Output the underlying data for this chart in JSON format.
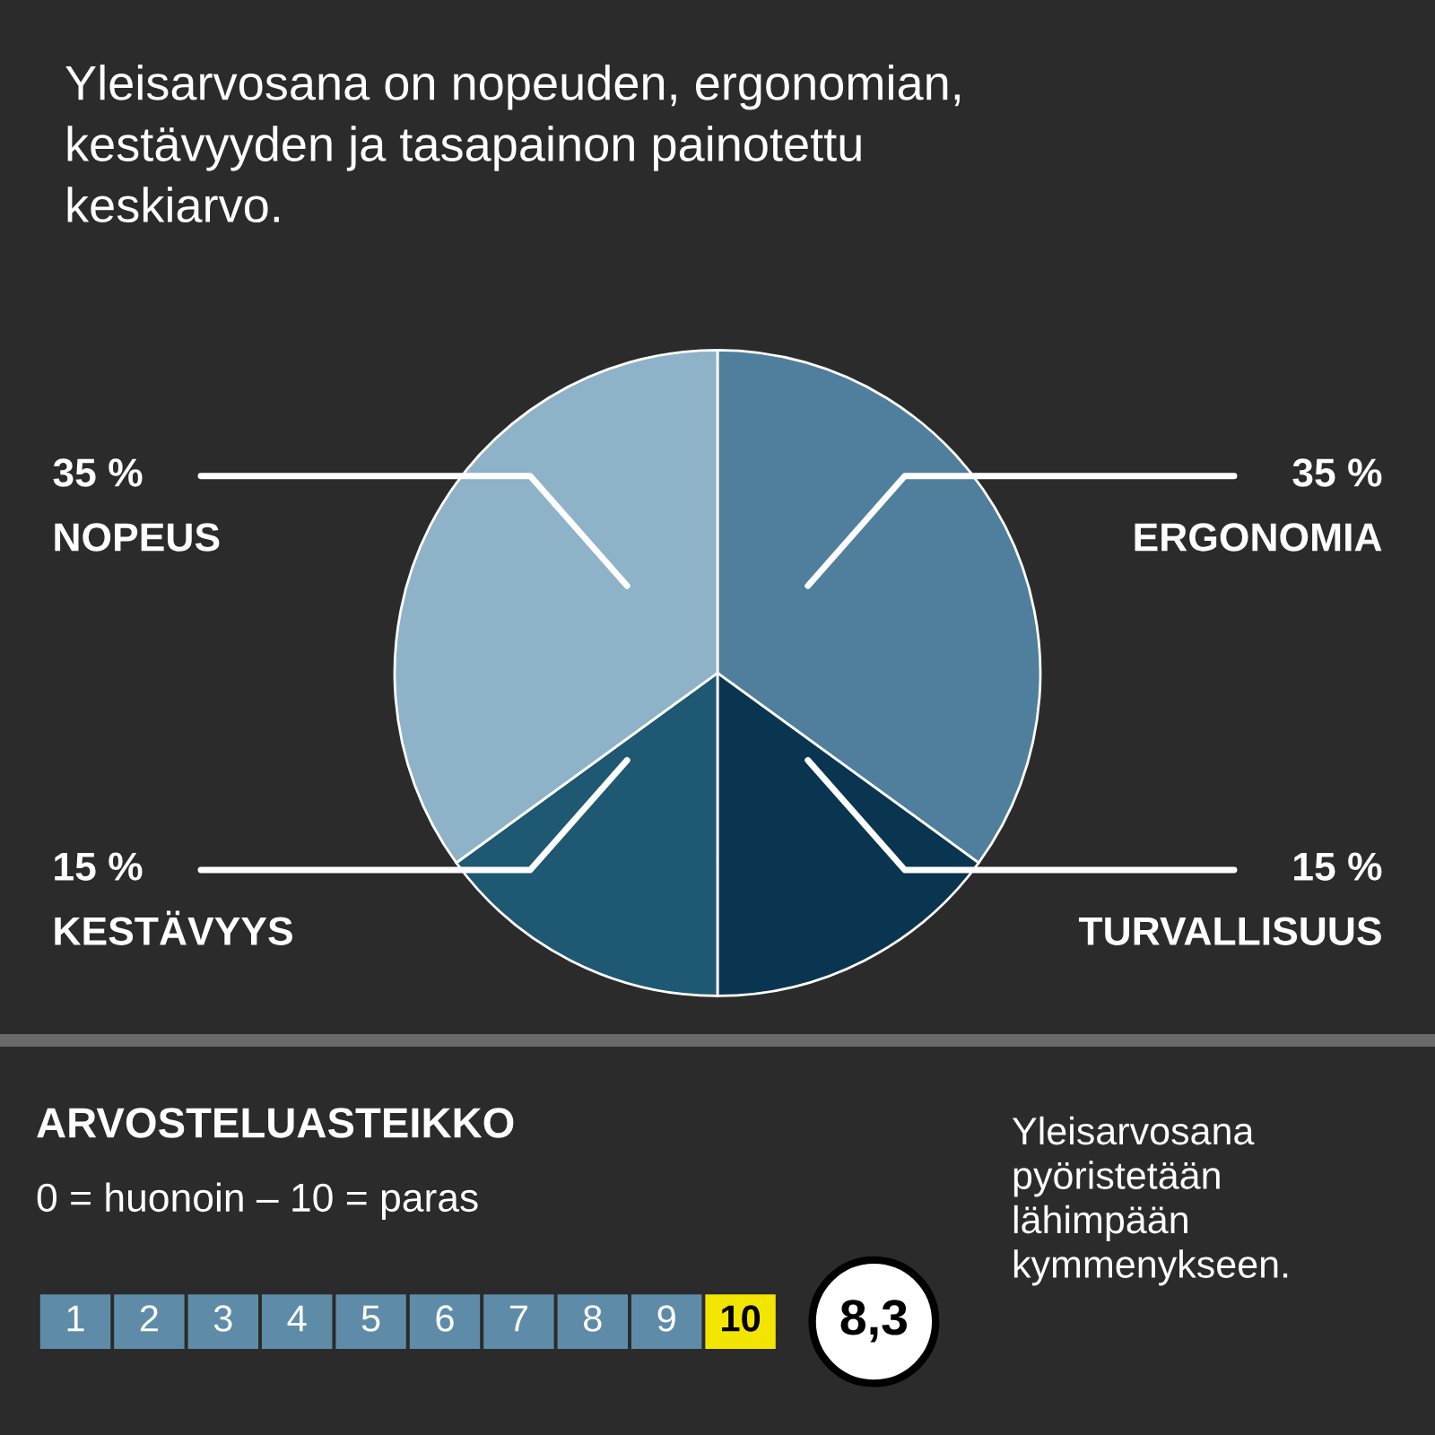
{
  "chart_data": {
    "type": "pie",
    "title": "Yleisarvosana on nopeuden, ergonomian,\nkestävyyden ja tasapainon painotettu\nkeskiarvo.",
    "categories": [
      "ERGONOMIA",
      "TURVALLISUUS",
      "KESTÄVYYS",
      "NOPEUS"
    ],
    "values": [
      35,
      15,
      15,
      35
    ],
    "value_labels": [
      "35 %",
      "15 %",
      "15 %",
      "35 %"
    ],
    "colors": [
      "#4f7f9c",
      "#0a3550",
      "#1f5872",
      "#8eb2c8"
    ],
    "annotations": [
      "ARVOSTELUASTEIKKO",
      "0 = huonoin – 10 = paras",
      "1",
      "2",
      "3",
      "4",
      "5",
      "6",
      "7",
      "8",
      "9",
      "10",
      "8,3",
      "Yleisarvosana\npyöristetään\nlähimpään\nkymmenykseen."
    ]
  }
}
